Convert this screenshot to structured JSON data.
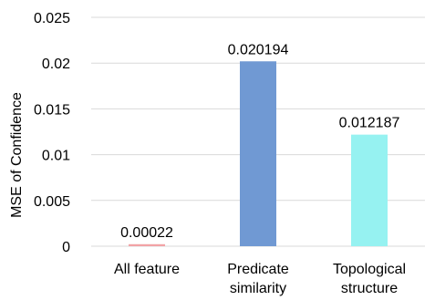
{
  "chart_data": {
    "type": "bar",
    "categories": [
      [
        "All feature"
      ],
      [
        "Predicate",
        "similarity"
      ],
      [
        "Topological",
        "structure"
      ]
    ],
    "values": [
      0.00022,
      0.020194,
      0.012187
    ],
    "data_labels": [
      "0.00022",
      "0.020194",
      "0.012187"
    ],
    "colors": [
      "#f2a3a6",
      "#7099d3",
      "#96f2f1"
    ],
    "title": "",
    "xlabel": "",
    "ylabel": "MSE of Confidence",
    "ylim": [
      0,
      0.025
    ],
    "yticks": [
      0,
      0.005,
      0.01,
      0.015,
      0.02,
      0.025
    ],
    "ytick_labels": [
      "0",
      "0.005",
      "0.01",
      "0.015",
      "0.02",
      "0.025"
    ],
    "grid": true,
    "legend": false
  }
}
